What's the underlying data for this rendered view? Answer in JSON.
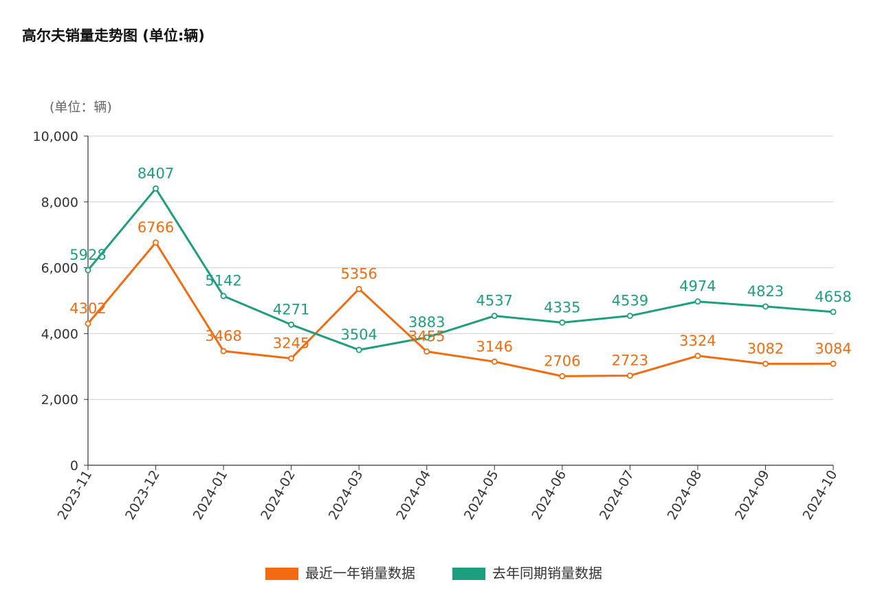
{
  "header": {
    "title": "高尔夫销量走势图 (单位:辆)"
  },
  "chart_data": {
    "type": "line",
    "unit_label": "(单位：辆)",
    "x": [
      "2023-11",
      "2023-12",
      "2024-01",
      "2024-02",
      "2024-03",
      "2024-04",
      "2024-05",
      "2024-06",
      "2024-07",
      "2024-08",
      "2024-09",
      "2024-10"
    ],
    "ylim": [
      0,
      10000
    ],
    "yticks": [
      0,
      2000,
      4000,
      6000,
      8000,
      10000
    ],
    "ytick_labels": [
      "0",
      "2,000",
      "4,000",
      "6,000",
      "8,000",
      "10,000"
    ],
    "grid": true,
    "legend_position": "bottom-center",
    "series": [
      {
        "name": "最近一年销量数据",
        "color": "#F26B10",
        "values": [
          4302,
          6766,
          3468,
          3245,
          5356,
          3455,
          3146,
          2706,
          2723,
          3324,
          3082,
          3084
        ]
      },
      {
        "name": "去年同期销量数据",
        "color": "#1E9E7E",
        "values": [
          5928,
          8407,
          5142,
          4271,
          3504,
          3883,
          4537,
          4335,
          4539,
          4974,
          4823,
          4658
        ]
      }
    ]
  }
}
